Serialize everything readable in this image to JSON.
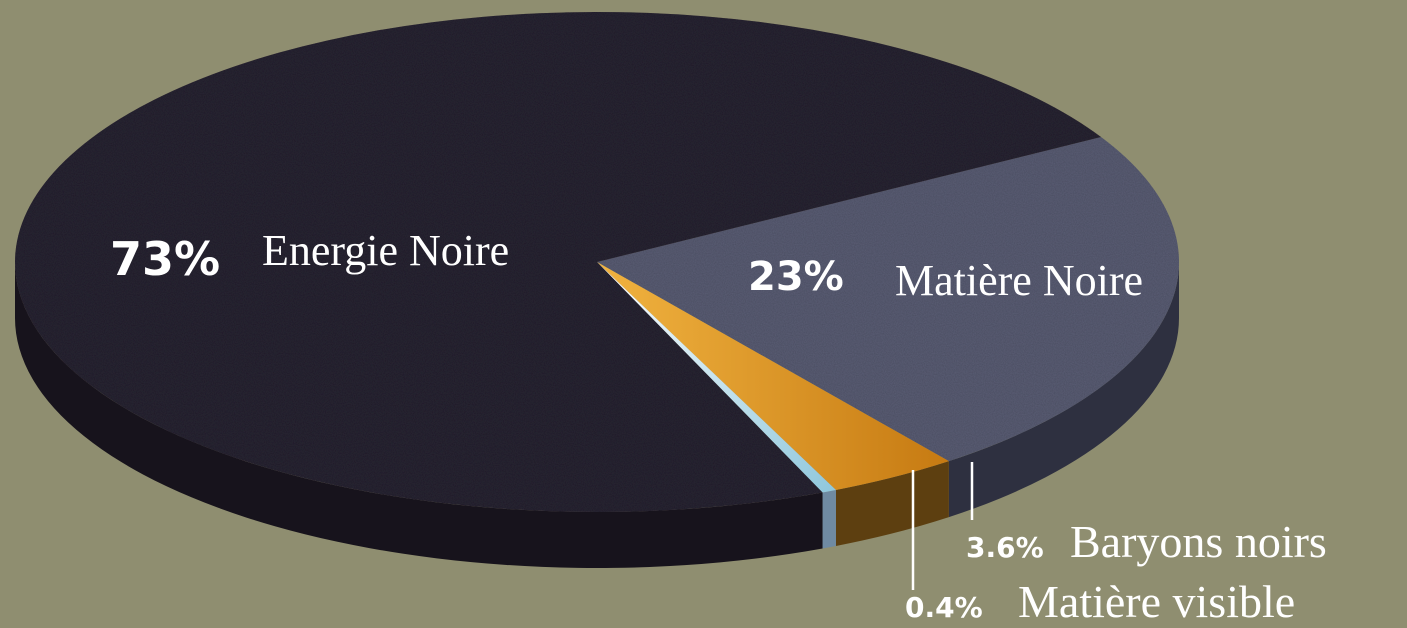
{
  "chart_data": {
    "type": "pie",
    "title": "",
    "slices": [
      {
        "name": "Energie Noire",
        "value": 73,
        "percent_label": "73%"
      },
      {
        "name": "Matière Noire",
        "value": 23,
        "percent_label": "23%"
      },
      {
        "name": "Baryons noirs",
        "value": 3.6,
        "percent_label": "3.6%"
      },
      {
        "name": "Matière visible",
        "value": 0.4,
        "percent_label": "0.4%"
      }
    ],
    "colors": {
      "Energie Noire": "#2c2634",
      "Matière Noire": "#5b5f76",
      "Baryons noirs": "#d48a1e",
      "Matière visible": "#a9d3e3"
    },
    "background": "#8f8e70",
    "three_d": true,
    "legend": "none"
  }
}
